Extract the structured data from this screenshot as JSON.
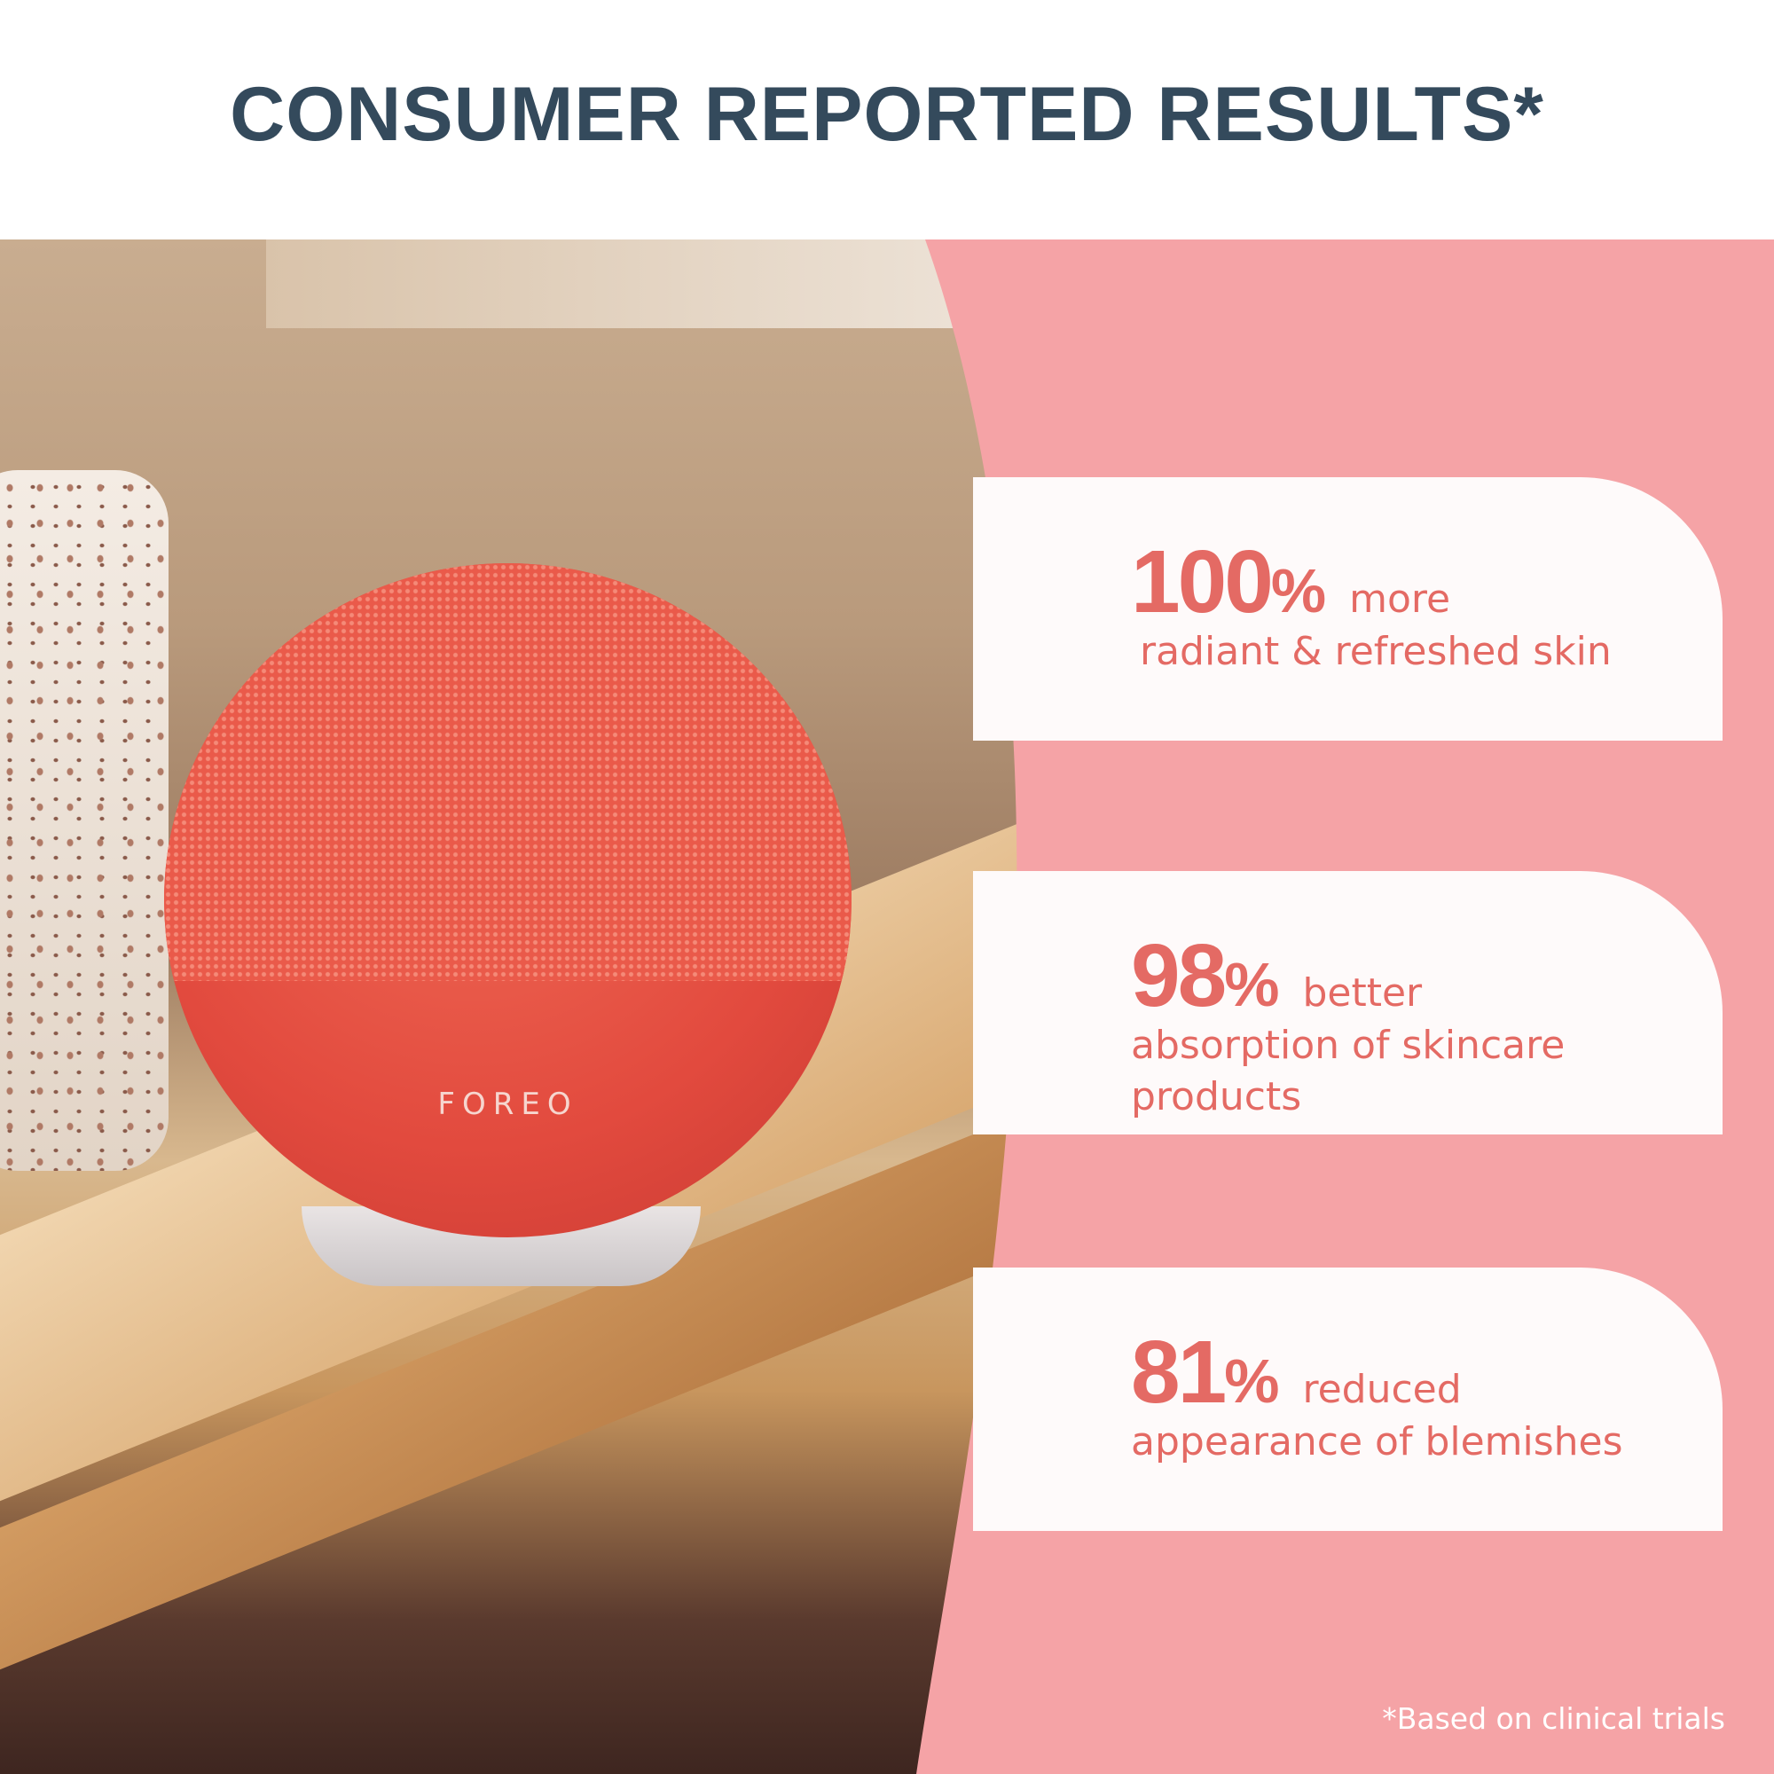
{
  "title": "CONSUMER REPORTED RESULTS*",
  "product": {
    "brand_logo": "FOREO"
  },
  "colors": {
    "title": "#344a5c",
    "accent": "#e46a64",
    "panel": "#f5a3a6",
    "card": "#fefafa"
  },
  "stats": [
    {
      "number": "100",
      "percent": "%",
      "word": "more",
      "description": "radiant & refreshed skin"
    },
    {
      "number": "98",
      "percent": "%",
      "word": "better",
      "description": "absorption of skincare products"
    },
    {
      "number": "81",
      "percent": "%",
      "word": "reduced",
      "description": "appearance of blemishes"
    }
  ],
  "footnote": "*Based on clinical trials"
}
